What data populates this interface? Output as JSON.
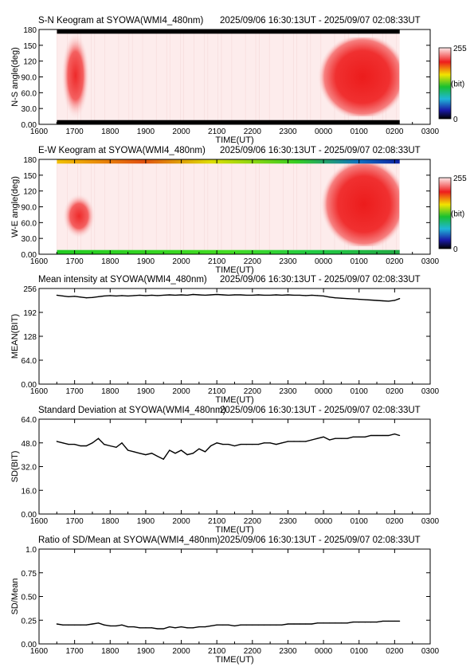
{
  "time_ticks": [
    "1600",
    "1700",
    "1800",
    "1900",
    "2000",
    "2100",
    "2200",
    "2300",
    "0000",
    "0100",
    "0200",
    "0300"
  ],
  "time_label": "TIME(UT)",
  "colors": {
    "black": "#000000",
    "bg": "#fdecec",
    "red": "#ee1c1c",
    "green": "#22dd22",
    "yellow": "#f2e400",
    "blue": "#1010c0"
  },
  "chart_data": [
    {
      "type": "heatmap",
      "title": "S-N Keogram at SYOWA(WMI4_480nm)",
      "time_range": "2025/09/06 16:30:13UT - 2025/09/07 02:08:33UT",
      "xlabel": "TIME(UT)",
      "ylabel": "N-S angle(deg)",
      "yticks": [
        "0.00",
        "30.0",
        "60.0",
        "90.0",
        "120",
        "150",
        "180"
      ],
      "ylim": [
        0,
        180
      ],
      "xlim": [
        "16:00",
        "03:00"
      ],
      "data_span": [
        "16:30:13",
        "02:08:33"
      ],
      "colorbar": {
        "min": "0",
        "max": "255",
        "unit": "(bit)"
      },
      "regions": [
        {
          "name": "auroral-patch-1",
          "x": [
            "16:38",
            "17:25"
          ],
          "y": [
            10,
            175
          ],
          "intensity": "medium-high"
        },
        {
          "name": "auroral-patch-2",
          "x": [
            "23:50",
            "02:08"
          ],
          "y": [
            15,
            165
          ],
          "intensity": "high"
        }
      ],
      "masked_rows_deg": [
        [
          0,
          8
        ],
        [
          172,
          180
        ]
      ]
    },
    {
      "type": "heatmap",
      "title": "E-W Keogram at SYOWA(WMI4_480nm)",
      "time_range": "2025/09/06 16:30:13UT - 2025/09/07 02:08:33UT",
      "xlabel": "TIME(UT)",
      "ylabel": "W-E angle(deg)",
      "yticks": [
        "0.00",
        "30.0",
        "60.0",
        "90.0",
        "120",
        "150",
        "180"
      ],
      "ylim": [
        0,
        180
      ],
      "xlim": [
        "16:00",
        "03:00"
      ],
      "data_span": [
        "16:30:13",
        "02:08:33"
      ],
      "colorbar": {
        "min": "0",
        "max": "255",
        "unit": "(bit)"
      },
      "regions": [
        {
          "name": "auroral-patch-1",
          "x": [
            "16:40",
            "17:35"
          ],
          "y": [
            30,
            115
          ],
          "intensity": "medium-high"
        },
        {
          "name": "auroral-patch-2",
          "x": [
            "23:55",
            "02:08"
          ],
          "y": [
            15,
            175
          ],
          "intensity": "high"
        }
      ],
      "edge_bands": [
        {
          "y": [
            0,
            8
          ],
          "color": "green"
        },
        {
          "y": [
            172,
            180
          ],
          "color": "green-yellow"
        }
      ]
    },
    {
      "type": "line",
      "title": "Mean intensity at SYOWA(WMI4_480nm)",
      "time_range": "2025/09/06 16:30:13UT - 2025/09/07 02:08:33UT",
      "xlabel": "TIME(UT)",
      "ylabel": "MEAN(BIT)",
      "yticks": [
        "0.00",
        "64.0",
        "128",
        "192",
        "256"
      ],
      "ylim": [
        0,
        256
      ],
      "x_hours": [
        16.5,
        16.67,
        16.83,
        17.0,
        17.17,
        17.33,
        17.5,
        17.67,
        17.83,
        18.0,
        18.17,
        18.33,
        18.5,
        18.67,
        18.83,
        19.0,
        19.17,
        19.33,
        19.5,
        19.67,
        19.83,
        20.0,
        20.17,
        20.33,
        20.5,
        20.67,
        20.83,
        21.0,
        21.17,
        21.33,
        21.5,
        21.67,
        21.83,
        22.0,
        22.17,
        22.33,
        22.5,
        22.67,
        22.83,
        23.0,
        23.17,
        23.33,
        23.5,
        23.67,
        23.83,
        24.0,
        24.17,
        24.33,
        24.5,
        24.67,
        24.83,
        25.0,
        25.17,
        25.33,
        25.5,
        25.67,
        25.83,
        26.0,
        26.14
      ],
      "values": [
        238,
        236,
        234,
        235,
        233,
        231,
        232,
        234,
        236,
        237,
        236,
        237,
        236,
        237,
        238,
        237,
        238,
        237,
        238,
        239,
        238,
        239,
        238,
        240,
        239,
        238,
        239,
        240,
        239,
        238,
        239,
        239,
        238,
        238,
        239,
        238,
        238,
        239,
        238,
        239,
        238,
        238,
        237,
        238,
        237,
        236,
        233,
        231,
        230,
        229,
        228,
        227,
        226,
        225,
        224,
        223,
        222,
        224,
        229
      ]
    },
    {
      "type": "line",
      "title": "Standard Deviation at SYOWA(WMI4_480nm)",
      "time_range": "2025/09/06 16:30:13UT - 2025/09/07 02:08:33UT",
      "xlabel": "TIME(UT)",
      "ylabel": "SD(BIT)",
      "yticks": [
        "0.00",
        "16.0",
        "32.0",
        "48.0",
        "64.0"
      ],
      "ylim": [
        0,
        64
      ],
      "x_hours": [
        16.5,
        16.67,
        16.83,
        17.0,
        17.17,
        17.33,
        17.5,
        17.67,
        17.83,
        18.0,
        18.17,
        18.33,
        18.5,
        18.67,
        18.83,
        19.0,
        19.17,
        19.33,
        19.5,
        19.67,
        19.83,
        20.0,
        20.17,
        20.33,
        20.5,
        20.67,
        20.83,
        21.0,
        21.17,
        21.33,
        21.5,
        21.67,
        21.83,
        22.0,
        22.17,
        22.33,
        22.5,
        22.67,
        22.83,
        23.0,
        23.17,
        23.33,
        23.5,
        23.67,
        23.83,
        24.0,
        24.17,
        24.33,
        24.5,
        24.67,
        24.83,
        25.0,
        25.17,
        25.33,
        25.5,
        25.67,
        25.83,
        26.0,
        26.14
      ],
      "values": [
        49,
        48,
        47,
        47,
        46,
        46,
        48,
        51,
        47,
        46,
        45,
        48,
        43,
        42,
        41,
        40,
        41,
        39,
        37,
        43,
        41,
        43,
        40,
        41,
        44,
        42,
        46,
        48,
        47,
        47,
        46,
        47,
        47,
        47,
        47,
        48,
        48,
        47,
        48,
        49,
        49,
        49,
        49,
        50,
        51,
        52,
        50,
        51,
        51,
        51,
        52,
        52,
        52,
        53,
        53,
        53,
        53,
        54,
        53
      ]
    },
    {
      "type": "line",
      "title": "Ratio of SD/Mean at SYOWA(WMI4_480nm)",
      "time_range": "2025/09/06 16:30:13UT - 2025/09/07 02:08:33UT",
      "xlabel": "TIME(UT)",
      "ylabel": "SD/Mean",
      "yticks": [
        "0.00",
        "0.25",
        "0.50",
        "0.75",
        "1.0"
      ],
      "ylim": [
        0,
        1.0
      ],
      "x_hours": [
        16.5,
        16.67,
        16.83,
        17.0,
        17.17,
        17.33,
        17.5,
        17.67,
        17.83,
        18.0,
        18.17,
        18.33,
        18.5,
        18.67,
        18.83,
        19.0,
        19.17,
        19.33,
        19.5,
        19.67,
        19.83,
        20.0,
        20.17,
        20.33,
        20.5,
        20.67,
        20.83,
        21.0,
        21.17,
        21.33,
        21.5,
        21.67,
        21.83,
        22.0,
        22.17,
        22.33,
        22.5,
        22.67,
        22.83,
        23.0,
        23.17,
        23.33,
        23.5,
        23.67,
        23.83,
        24.0,
        24.17,
        24.33,
        24.5,
        24.67,
        24.83,
        25.0,
        25.17,
        25.33,
        25.5,
        25.67,
        25.83,
        26.0,
        26.14
      ],
      "values": [
        0.21,
        0.2,
        0.2,
        0.2,
        0.2,
        0.2,
        0.21,
        0.22,
        0.2,
        0.19,
        0.19,
        0.2,
        0.18,
        0.18,
        0.17,
        0.17,
        0.17,
        0.16,
        0.16,
        0.18,
        0.17,
        0.18,
        0.17,
        0.17,
        0.18,
        0.18,
        0.19,
        0.2,
        0.2,
        0.2,
        0.19,
        0.2,
        0.2,
        0.2,
        0.2,
        0.2,
        0.2,
        0.2,
        0.2,
        0.21,
        0.21,
        0.21,
        0.21,
        0.21,
        0.22,
        0.22,
        0.22,
        0.22,
        0.22,
        0.22,
        0.23,
        0.23,
        0.23,
        0.23,
        0.23,
        0.24,
        0.24,
        0.24,
        0.24
      ]
    }
  ]
}
